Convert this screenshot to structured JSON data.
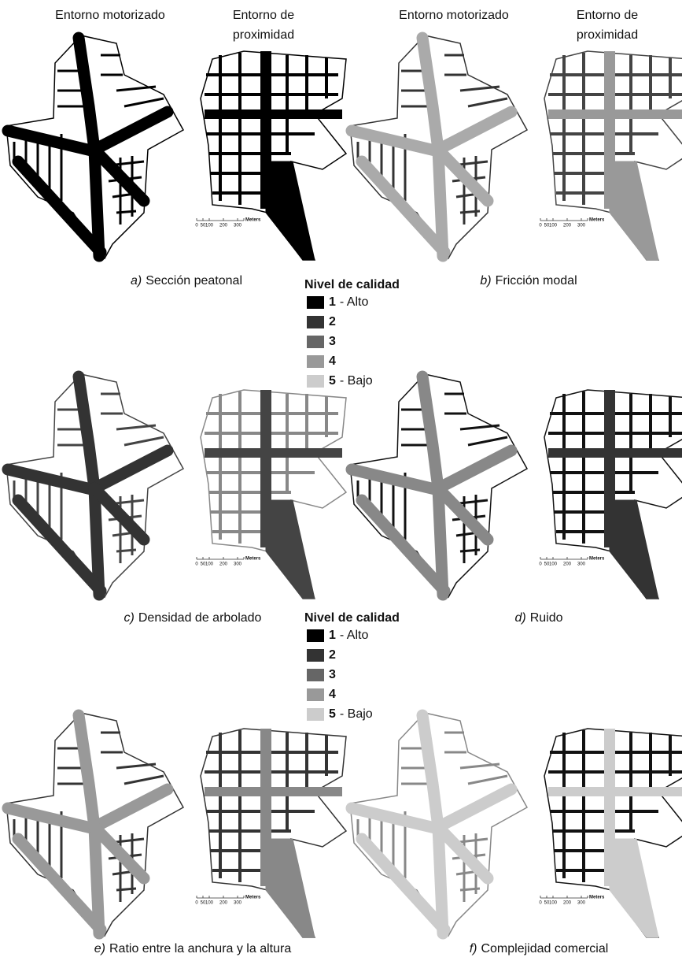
{
  "header": {
    "motorized": "Entorno motorizado",
    "proximity": [
      "Entorno de",
      "proximidad"
    ]
  },
  "panels": [
    {
      "letter": "a)",
      "caption": "Sección peatonal"
    },
    {
      "letter": "b)",
      "caption": "Fricción modal"
    },
    {
      "letter": "c)",
      "caption": "Densidad de arbolado"
    },
    {
      "letter": "d)",
      "caption": "Ruido"
    },
    {
      "letter": "e)",
      "caption": "Ratio entre la anchura y la altura"
    },
    {
      "letter": "f)",
      "caption": "Complejidad comercial"
    }
  ],
  "legend": {
    "title": "Nivel de calidad",
    "items": [
      {
        "level": "1",
        "label": "- Alto"
      },
      {
        "level": "2"
      },
      {
        "level": "3"
      },
      {
        "level": "4"
      },
      {
        "level": "5",
        "label": "- Bajo"
      }
    ]
  },
  "scale_bar": {
    "labels": [
      "0",
      "50",
      "100",
      "200",
      "300"
    ],
    "unit": "Meters"
  }
}
